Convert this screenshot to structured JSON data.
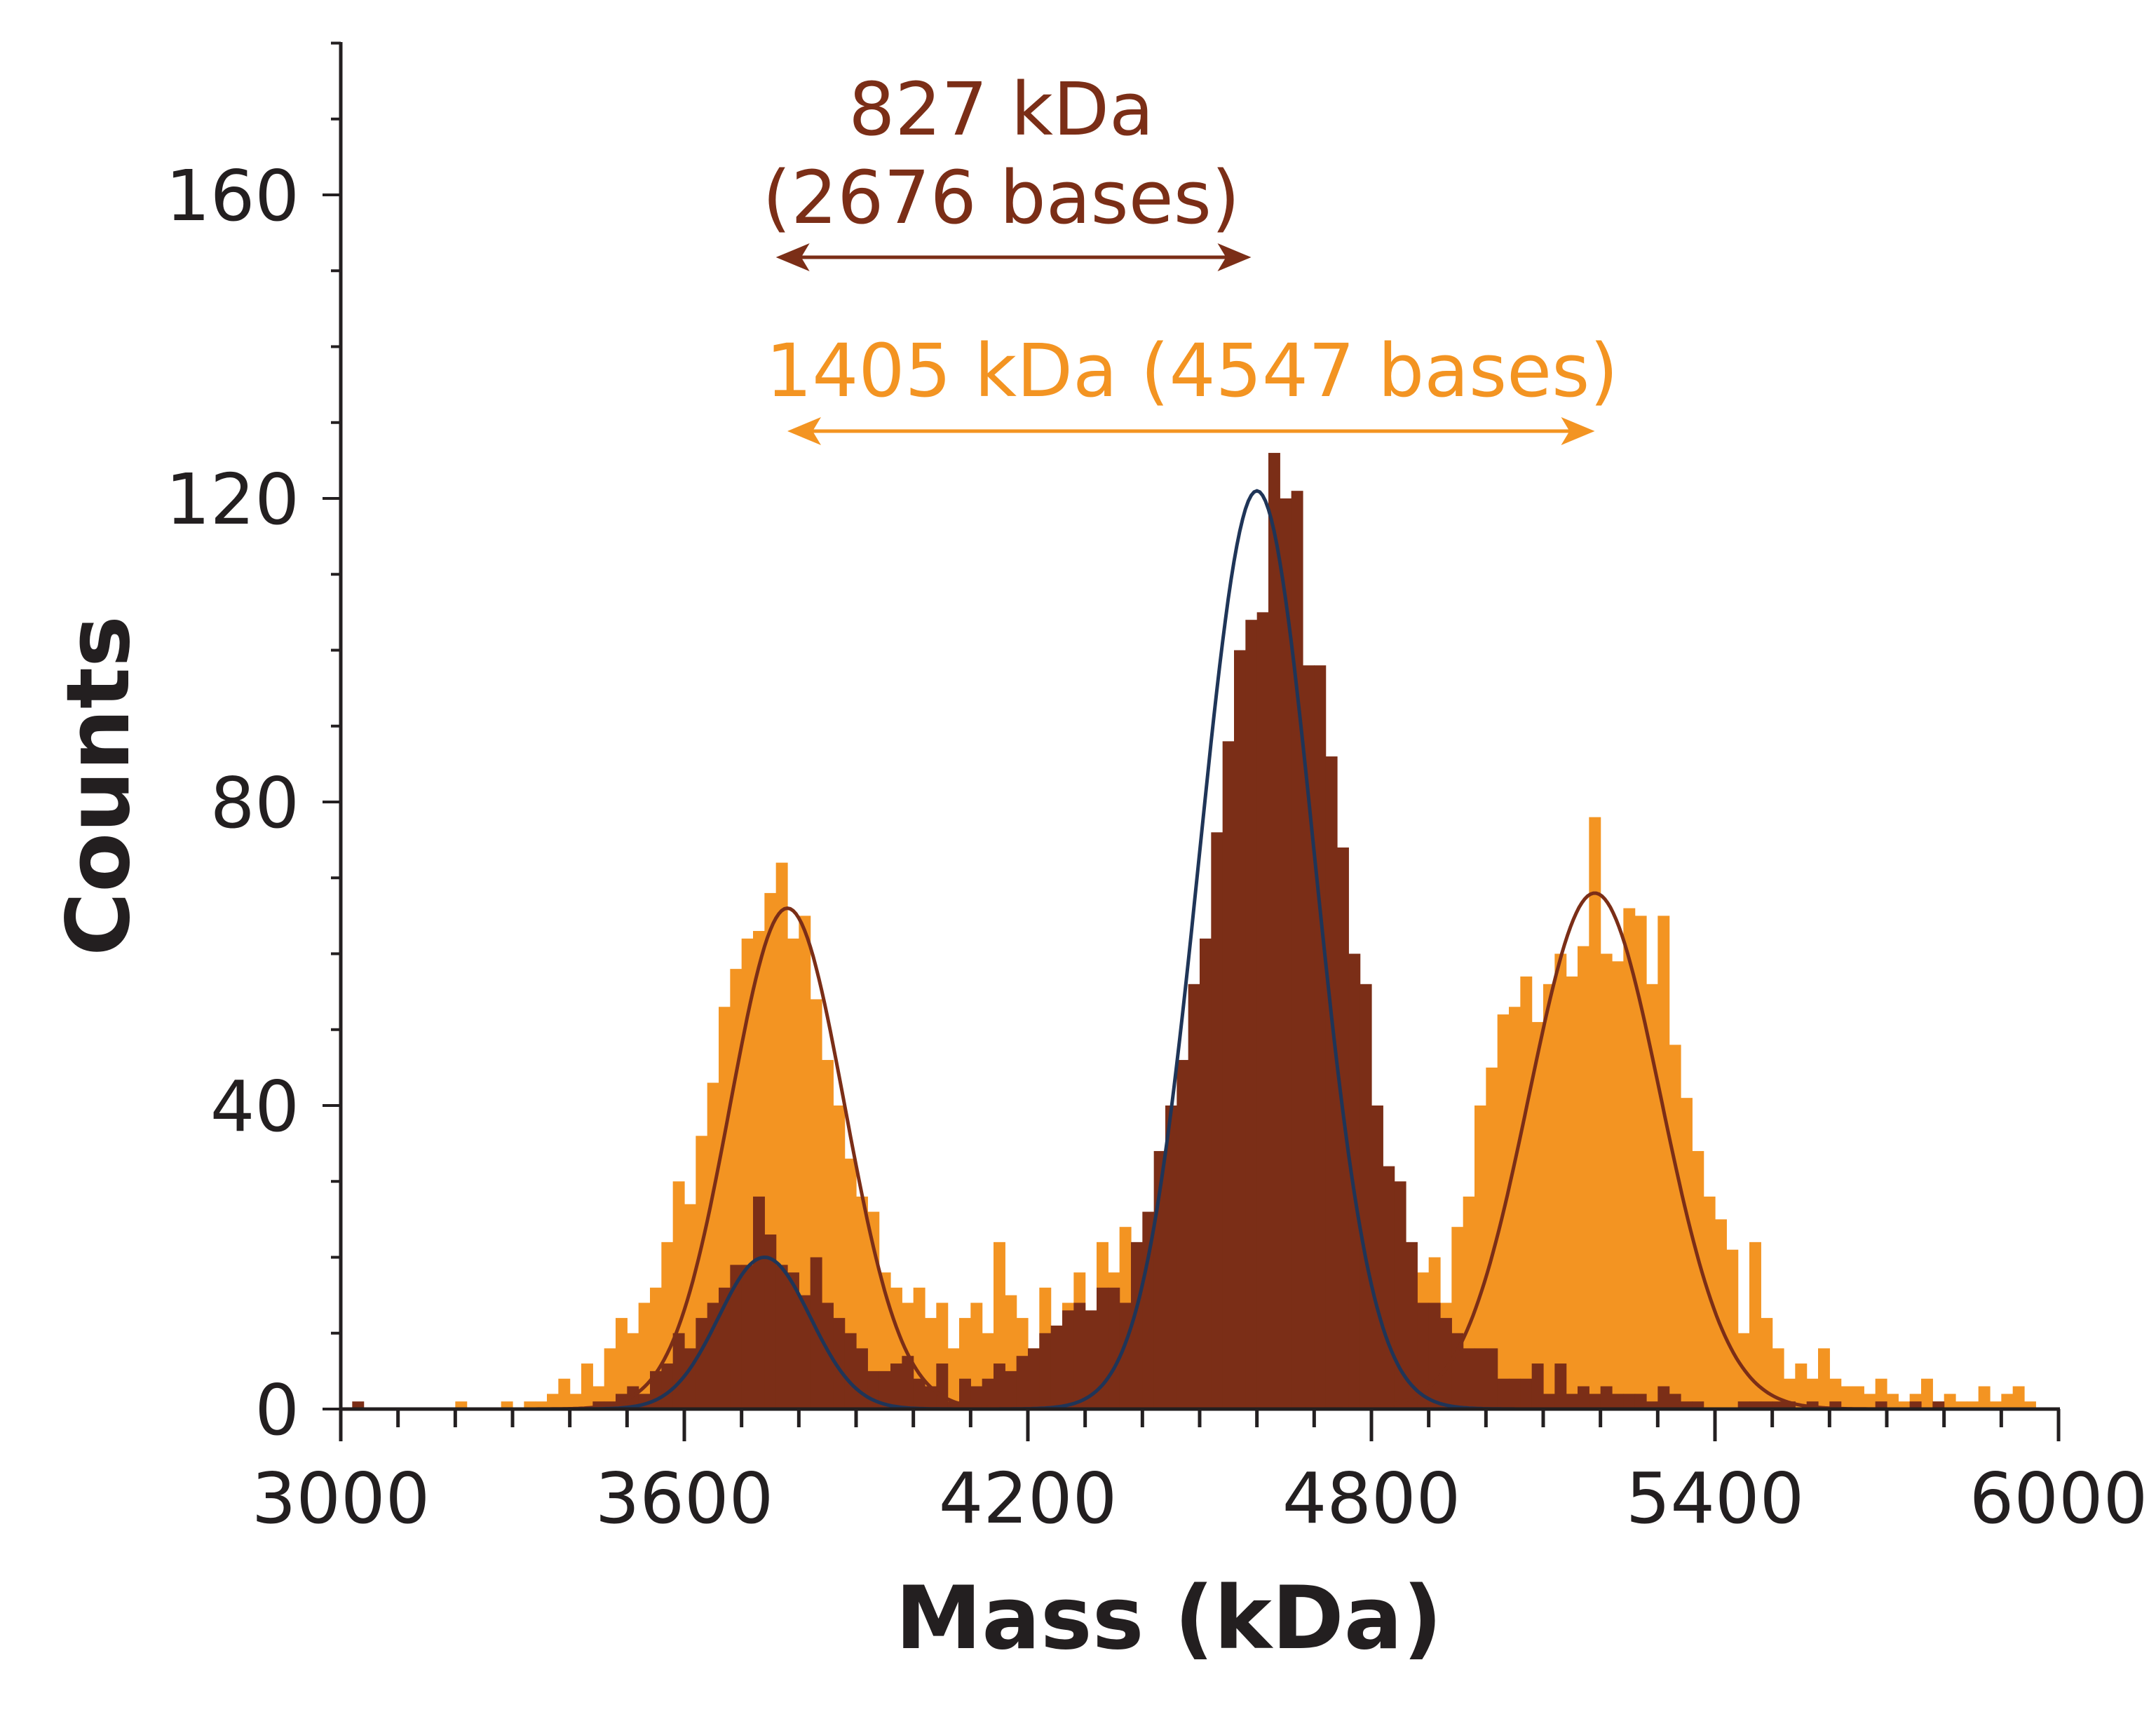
{
  "chart_data": {
    "type": "bar",
    "subtype": "overlaid-histogram-with-gaussian-fits",
    "xlabel": "Mass (kDa)",
    "ylabel": "Counts",
    "xlim": [
      3000,
      6000
    ],
    "ylim": [
      0,
      180
    ],
    "xticks": [
      3000,
      3600,
      4200,
      4800,
      5400,
      6000
    ],
    "xtick_labels": [
      "3000",
      "3600",
      "4200",
      "4800",
      "5400",
      "6000"
    ],
    "yticks": [
      0,
      40,
      80,
      120,
      160
    ],
    "ytick_labels": [
      "0",
      "40",
      "80",
      "120",
      "160"
    ],
    "x_minor_step": 100,
    "y_minor_step": 10,
    "grid": false,
    "bin_start": 3000,
    "bin_width": 20,
    "series": [
      {
        "color": "#F39422",
        "values": [
          0,
          0,
          0,
          0,
          0,
          0,
          0,
          0,
          0,
          0,
          1,
          0,
          0,
          0,
          1,
          0,
          1,
          1,
          2,
          4,
          2,
          6,
          3,
          8,
          12,
          10,
          14,
          16,
          22,
          30,
          27,
          36,
          43,
          53,
          58,
          62,
          63,
          68,
          72,
          62,
          65,
          54,
          46,
          40,
          33,
          28,
          26,
          18,
          16,
          14,
          16,
          12,
          14,
          8,
          12,
          14,
          10,
          22,
          15,
          12,
          8,
          16,
          4,
          14,
          18,
          10,
          22,
          18,
          24,
          20,
          12,
          14,
          10,
          8,
          6,
          6,
          8,
          6,
          4,
          6,
          6,
          8,
          6,
          4,
          8,
          6,
          6,
          8,
          6,
          10,
          8,
          12,
          14,
          10,
          18,
          20,
          14,
          24,
          28,
          40,
          45,
          52,
          53,
          57,
          51,
          56,
          60,
          57,
          61,
          78,
          60,
          59,
          66,
          65,
          56,
          65,
          48,
          41,
          34,
          28,
          25,
          21,
          10,
          22,
          12,
          8,
          4,
          6,
          4,
          8,
          4,
          3,
          3,
          2,
          4,
          2,
          1,
          2,
          4,
          1,
          2,
          1,
          1,
          3,
          1,
          2,
          3,
          1,
          0,
          0
        ],
        "fits": [
          {
            "amplitude": 66,
            "mean": 3780,
            "sigma": 100,
            "color": "#7B2E17"
          },
          {
            "amplitude": 68,
            "mean": 5190,
            "sigma": 115,
            "color": "#7B2E17"
          }
        ]
      },
      {
        "color": "#7B2E17",
        "values": [
          0,
          1,
          0,
          0,
          0,
          0,
          0,
          0,
          0,
          0,
          0,
          0,
          0,
          0,
          0,
          0,
          0,
          0,
          0,
          0,
          0,
          0,
          1,
          1,
          2,
          3,
          2,
          5,
          6,
          10,
          8,
          12,
          14,
          16,
          19,
          19,
          28,
          23,
          19,
          18,
          15,
          20,
          14,
          12,
          10,
          8,
          5,
          5,
          6,
          7,
          4,
          3,
          6,
          1,
          4,
          3,
          4,
          6,
          5,
          7,
          8,
          10,
          11,
          13,
          14,
          13,
          16,
          16,
          14,
          22,
          26,
          34,
          40,
          46,
          56,
          62,
          76,
          88,
          100,
          104,
          105,
          126,
          120,
          121,
          98,
          98,
          86,
          74,
          60,
          56,
          40,
          32,
          30,
          22,
          14,
          14,
          12,
          10,
          8,
          8,
          8,
          4,
          4,
          4,
          6,
          2,
          6,
          2,
          3,
          2,
          3,
          2,
          2,
          2,
          1,
          3,
          2,
          1,
          1,
          0,
          0,
          0,
          1,
          1,
          1,
          1,
          1,
          0,
          1,
          0,
          1,
          0,
          0,
          0,
          1,
          0,
          0,
          1,
          0,
          1,
          0,
          0,
          0,
          0,
          0,
          0,
          0,
          0,
          0,
          0
        ],
        "fits": [
          {
            "amplitude": 20,
            "mean": 3740,
            "sigma": 80,
            "color": "#1F3558"
          },
          {
            "amplitude": 121,
            "mean": 4600,
            "sigma": 100,
            "color": "#1F3558"
          }
        ]
      }
    ],
    "annotations": [
      {
        "lines": [
          "827 kDa",
          "(2676 bases)"
        ],
        "color": "#7B2E17",
        "arrow_from": 3760,
        "arrow_to": 4590
      },
      {
        "lines": [
          "1405 kDa (4547 bases)"
        ],
        "color": "#F39422",
        "arrow_from": 3780,
        "arrow_to": 5190
      }
    ]
  }
}
